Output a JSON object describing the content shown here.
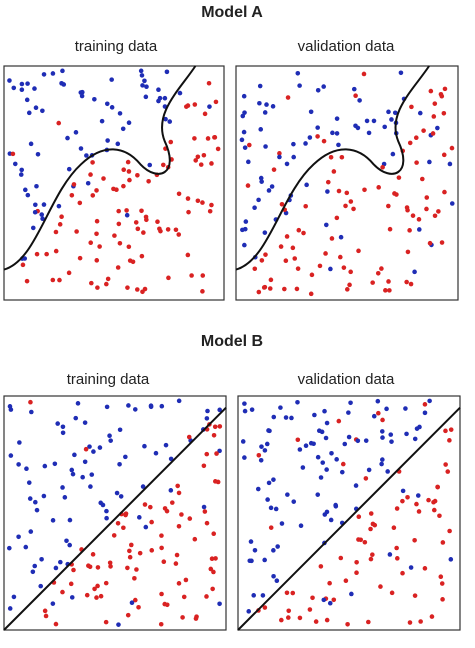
{
  "models": [
    {
      "title": "Model A",
      "panels": [
        {
          "label": "training data"
        },
        {
          "label": "validation data"
        }
      ]
    },
    {
      "title": "Model B",
      "panels": [
        {
          "label": "training data"
        },
        {
          "label": "validation data"
        }
      ]
    }
  ]
}
